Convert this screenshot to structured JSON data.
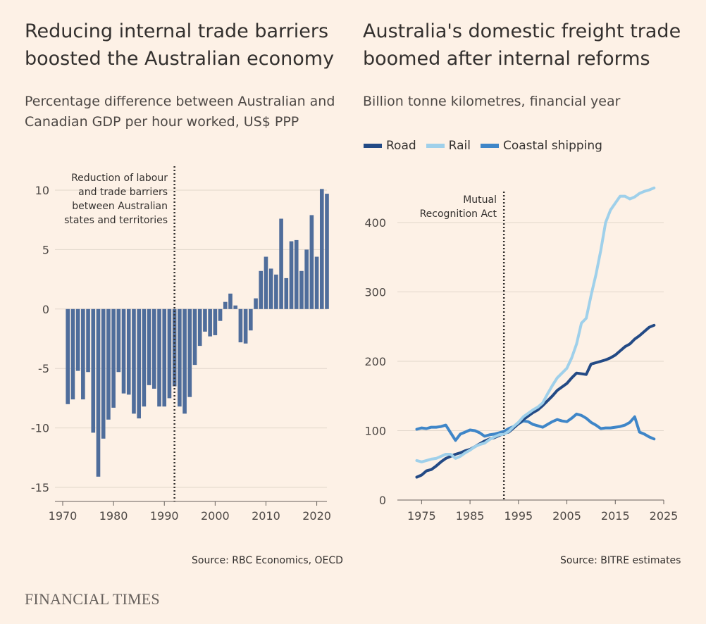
{
  "left": {
    "title_line1": "Reducing internal trade barriers",
    "title_line2": "boosted the Australian economy",
    "subtitle_line1": "Percentage difference between Australian and",
    "subtitle_line2": "Canadian GDP per hour worked, US$ PPP",
    "annotation_lines": [
      "Reduction of labour",
      "and trade barriers",
      "between Australian",
      "states and territories"
    ],
    "source": "Source: RBC Economics, OECD"
  },
  "right": {
    "title_line1": "Australia's domestic freight trade",
    "title_line2": "boomed after internal reforms",
    "subtitle": "Billion tonne kilometres, financial year",
    "annotation_lines": [
      "Mutual",
      "Recognition Act"
    ],
    "source": "Source: BITRE estimates"
  },
  "brand": "FINANCIAL TIMES",
  "colors": {
    "background": "#fdf1e6",
    "bar": "#4f6d9b",
    "road": "#234a85",
    "rail": "#9fd0ea",
    "coastal": "#3f86c8"
  },
  "chart_data": [
    {
      "type": "bar",
      "title": "Reducing internal trade barriers boosted the Australian economy",
      "subtitle": "Percentage difference between Australian and Canadian GDP per hour worked, US$ PPP",
      "x": [
        1971,
        1972,
        1973,
        1974,
        1975,
        1976,
        1977,
        1978,
        1979,
        1980,
        1981,
        1982,
        1983,
        1984,
        1985,
        1986,
        1987,
        1988,
        1989,
        1990,
        1991,
        1992,
        1993,
        1994,
        1995,
        1996,
        1997,
        1998,
        1999,
        2000,
        2001,
        2002,
        2003,
        2004,
        2005,
        2006,
        2007,
        2008,
        2009,
        2010,
        2011,
        2012,
        2013,
        2014,
        2015,
        2016,
        2017,
        2018,
        2019,
        2020,
        2021,
        2022
      ],
      "values": [
        -8.0,
        -7.6,
        -5.2,
        -7.6,
        -5.3,
        -10.4,
        -14.1,
        -10.9,
        -9.3,
        -8.3,
        -5.3,
        -7.1,
        -7.2,
        -8.8,
        -9.2,
        -8.2,
        -6.4,
        -6.7,
        -8.2,
        -8.2,
        -7.5,
        -6.5,
        -8.2,
        -8.8,
        -7.4,
        -4.7,
        -3.1,
        -1.9,
        -2.3,
        -2.2,
        -1.0,
        0.6,
        1.3,
        0.3,
        -2.8,
        -2.9,
        -1.8,
        0.9,
        3.2,
        4.4,
        3.4,
        2.9,
        7.6,
        2.6,
        5.7,
        5.8,
        3.2,
        5.0,
        7.9,
        4.4,
        10.1,
        9.7
      ],
      "xlim": [
        1970,
        2022
      ],
      "xticks": [
        1970,
        1980,
        1990,
        2000,
        2010,
        2020
      ],
      "ylim": [
        -15,
        10
      ],
      "yticks": [
        10,
        5,
        0,
        -5,
        -10,
        -15
      ],
      "grid": true,
      "annotation": {
        "x": 1992,
        "text": "Reduction of labour and trade barriers between Australian states and territories"
      }
    },
    {
      "type": "line",
      "title": "Australia's domestic freight trade boomed after internal reforms",
      "subtitle": "Billion tonne kilometres, financial year",
      "x": [
        1974,
        1975,
        1976,
        1977,
        1978,
        1979,
        1980,
        1981,
        1982,
        1983,
        1984,
        1985,
        1986,
        1987,
        1988,
        1989,
        1990,
        1991,
        1992,
        1993,
        1994,
        1995,
        1996,
        1997,
        1998,
        1999,
        2000,
        2001,
        2002,
        2003,
        2004,
        2005,
        2006,
        2007,
        2008,
        2009,
        2010,
        2011,
        2012,
        2013,
        2014,
        2015,
        2016,
        2017,
        2018,
        2019,
        2020,
        2021,
        2022,
        2023
      ],
      "series": [
        {
          "name": "Road",
          "color": "#234a85",
          "values": [
            33,
            36,
            42,
            44,
            49,
            55,
            60,
            63,
            66,
            68,
            71,
            73,
            77,
            81,
            85,
            88,
            90,
            93,
            96,
            98,
            104,
            110,
            116,
            121,
            126,
            130,
            136,
            143,
            150,
            158,
            163,
            168,
            176,
            183,
            182,
            181,
            196,
            198,
            200,
            202,
            205,
            209,
            215,
            221,
            225,
            232,
            237,
            243,
            249,
            252
          ]
        },
        {
          "name": "Rail",
          "color": "#9fd0ea",
          "values": [
            57,
            55,
            57,
            59,
            60,
            63,
            66,
            66,
            60,
            63,
            68,
            72,
            77,
            80,
            82,
            87,
            91,
            94,
            95,
            99,
            106,
            112,
            120,
            125,
            130,
            134,
            140,
            153,
            165,
            176,
            183,
            190,
            205,
            225,
            255,
            262,
            295,
            325,
            360,
            400,
            418,
            428,
            438,
            438,
            434,
            437,
            442,
            445,
            447,
            450
          ]
        },
        {
          "name": "Coastal shipping",
          "color": "#3f86c8",
          "values": [
            102,
            104,
            103,
            105,
            105,
            106,
            108,
            97,
            86,
            95,
            98,
            101,
            100,
            97,
            92,
            94,
            95,
            97,
            99,
            103,
            106,
            110,
            114,
            113,
            109,
            107,
            105,
            109,
            113,
            116,
            114,
            113,
            118,
            124,
            122,
            118,
            112,
            108,
            103,
            104,
            104,
            105,
            106,
            108,
            112,
            120,
            98,
            95,
            91,
            88
          ]
        }
      ],
      "xlim": [
        1970,
        2025
      ],
      "xticks": [
        1975,
        1985,
        1995,
        2005,
        2015,
        2025
      ],
      "ylim": [
        0,
        450
      ],
      "yticks": [
        0,
        100,
        200,
        300,
        400
      ],
      "grid": true,
      "legend": "top-left",
      "annotation": {
        "x": 1992,
        "text": "Mutual Recognition Act"
      }
    }
  ]
}
